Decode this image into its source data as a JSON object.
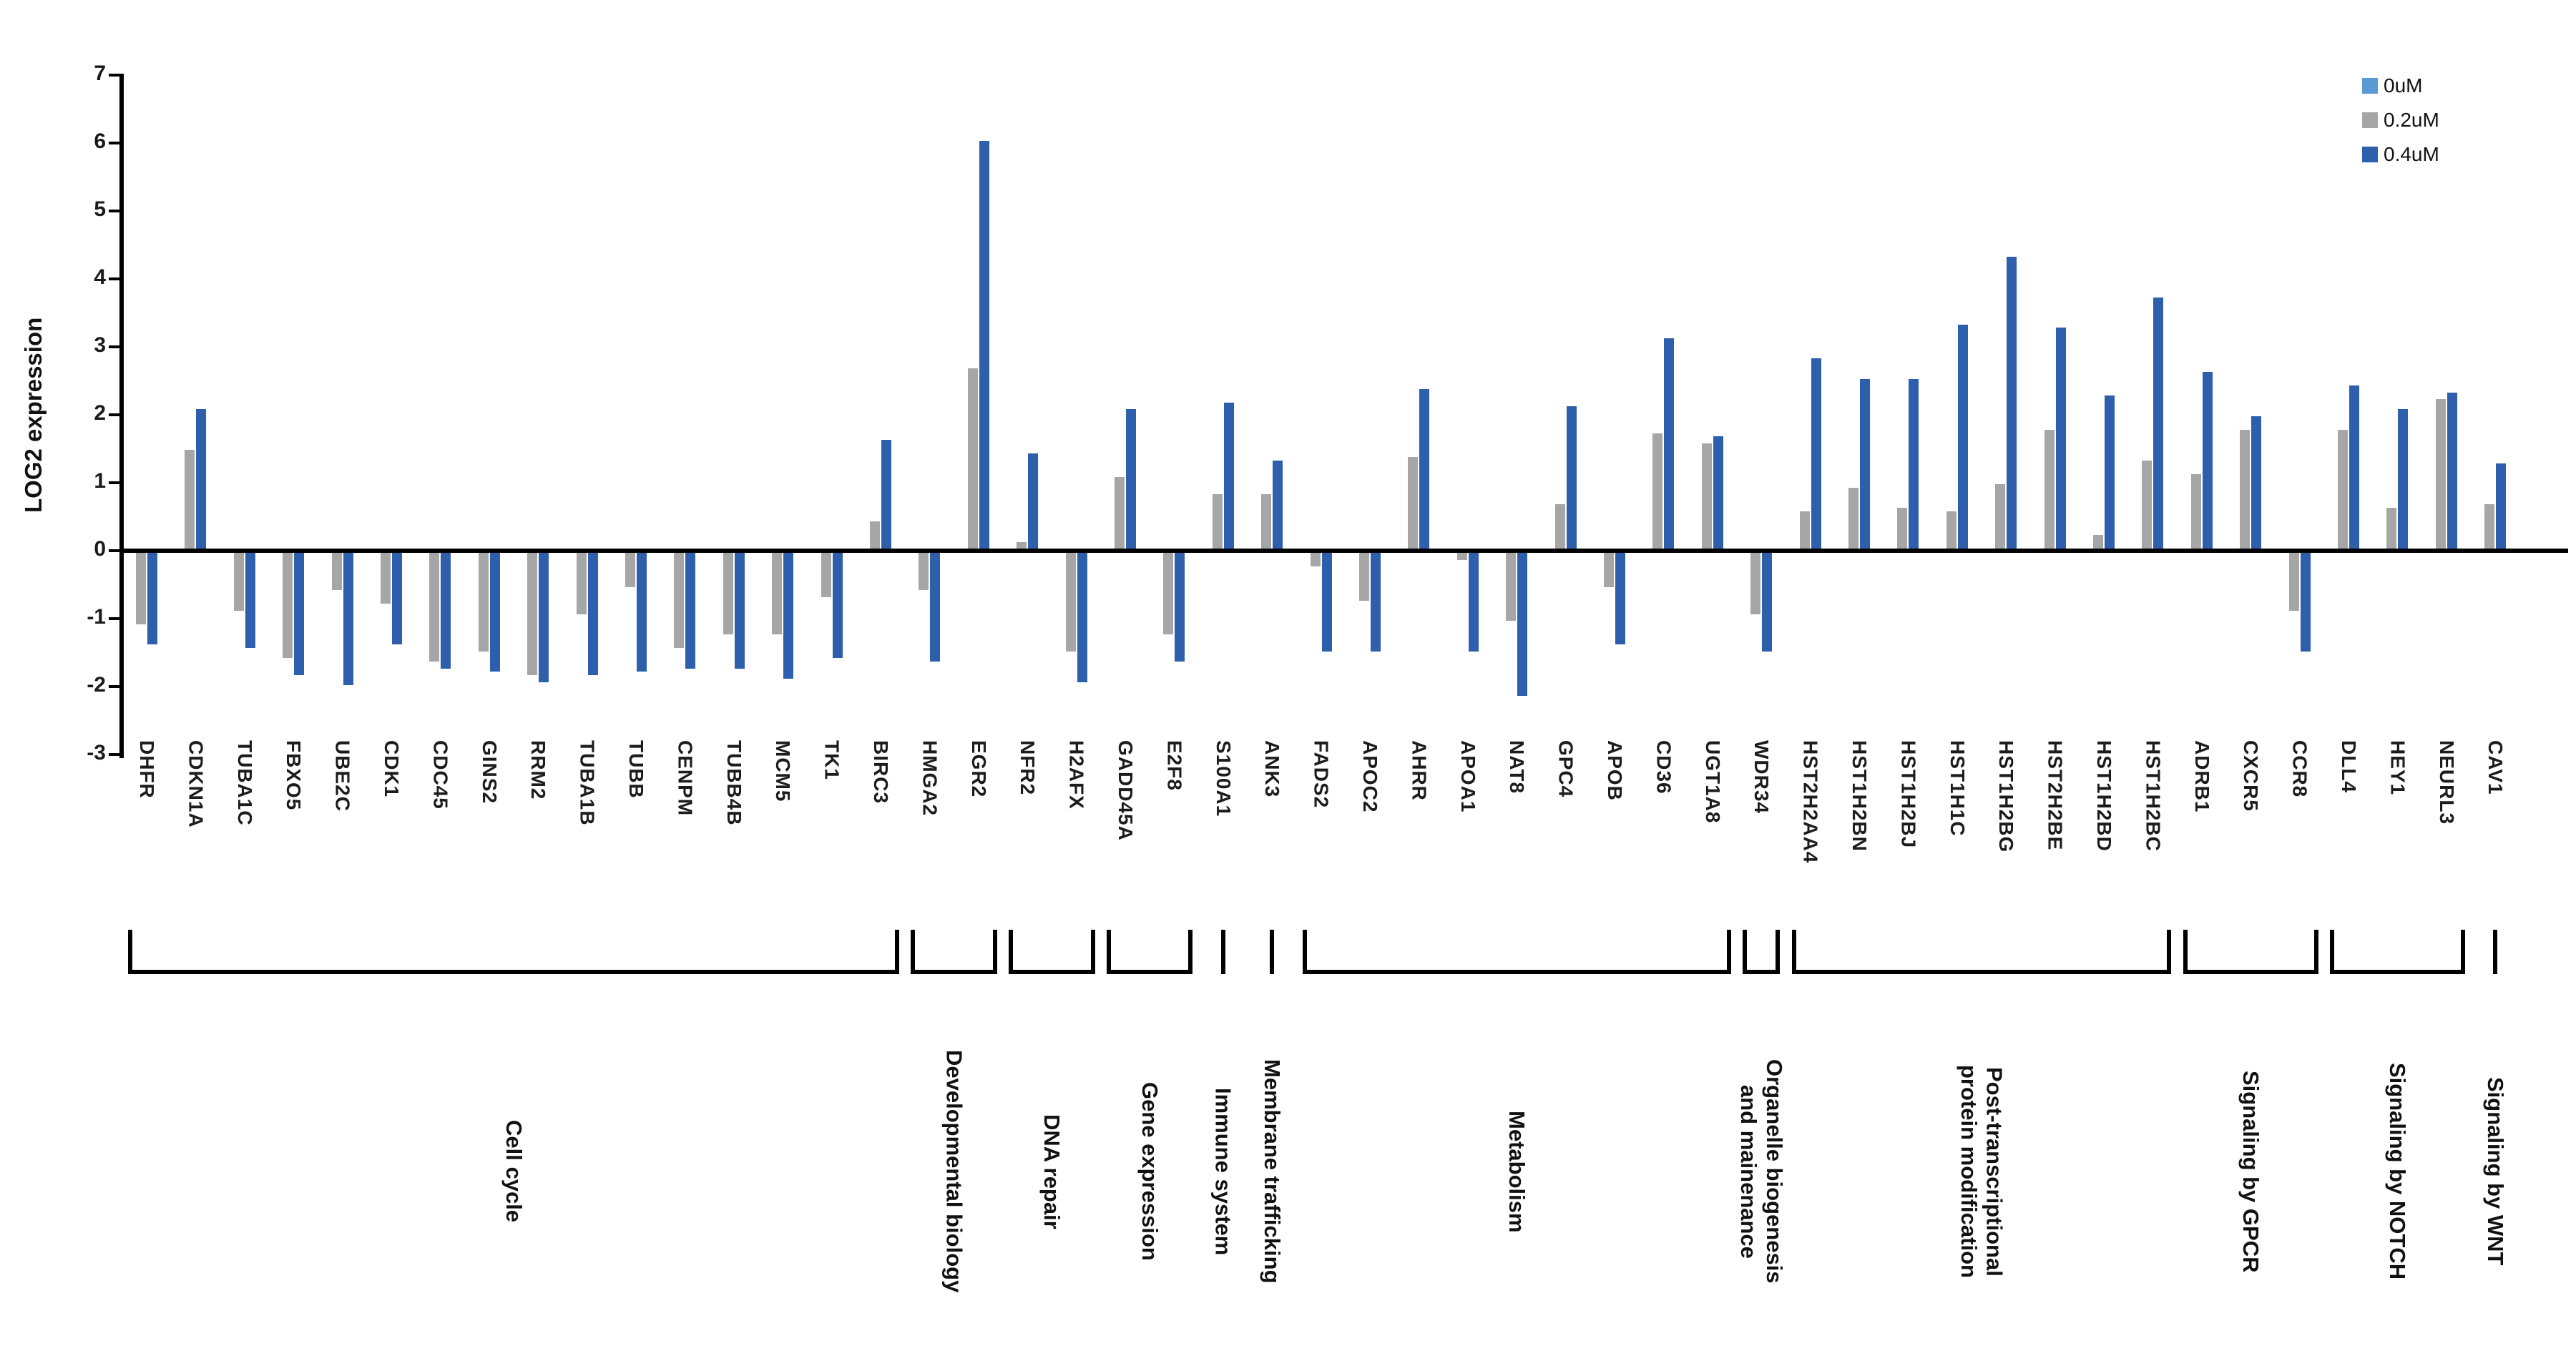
{
  "legend": [
    {
      "label": "0uM",
      "color": "#5b9bd5"
    },
    {
      "label": "0.2uM",
      "color": "#a6a6a6"
    },
    {
      "label": "0.4uM",
      "color": "#2e5fac"
    }
  ],
  "chart_data": {
    "type": "bar",
    "title": "",
    "xlabel": "",
    "ylabel": "LOG2 expression",
    "ylim": [
      -3,
      7
    ],
    "yticks": [
      7,
      6,
      5,
      4,
      3,
      2,
      1,
      0,
      -1,
      -2,
      -3
    ],
    "grid": false,
    "legend_position": "top-right",
    "series_names": [
      "0uM",
      "0.2uM",
      "0.4uM"
    ],
    "series_colors": [
      "#5b9bd5",
      "#a6a6a6",
      "#2e5fac"
    ],
    "groups": [
      {
        "category": "Cell cycle",
        "bracket": "bracket",
        "genes": [
          {
            "name": "DHFR",
            "values": [
              0,
              -1.05,
              -1.35
            ]
          },
          {
            "name": "CDKN1A",
            "values": [
              0,
              1.45,
              2.05
            ]
          },
          {
            "name": "TUBA1C",
            "values": [
              0,
              -0.85,
              -1.4
            ]
          },
          {
            "name": "FBXO5",
            "values": [
              0,
              -1.55,
              -1.8
            ]
          },
          {
            "name": "UBE2C",
            "values": [
              0,
              -0.55,
              -1.95
            ]
          },
          {
            "name": "CDK1",
            "values": [
              0,
              -0.75,
              -1.35
            ]
          },
          {
            "name": "CDC45",
            "values": [
              0,
              -1.6,
              -1.7
            ]
          },
          {
            "name": "GINS2",
            "values": [
              0,
              -1.45,
              -1.75
            ]
          },
          {
            "name": "RRM2",
            "values": [
              0,
              -1.8,
              -1.9
            ]
          },
          {
            "name": "TUBA1B",
            "values": [
              0,
              -0.9,
              -1.8
            ]
          },
          {
            "name": "TUBB",
            "values": [
              0,
              -0.5,
              -1.75
            ]
          },
          {
            "name": "CENPM",
            "values": [
              0,
              -1.4,
              -1.7
            ]
          },
          {
            "name": "TUBB4B",
            "values": [
              0,
              -1.2,
              -1.7
            ]
          },
          {
            "name": "MCM5",
            "values": [
              0,
              -1.2,
              -1.85
            ]
          },
          {
            "name": "TK1",
            "values": [
              0,
              -0.65,
              -1.55
            ]
          },
          {
            "name": "BIRC3",
            "values": [
              0,
              0.4,
              1.6
            ]
          }
        ]
      },
      {
        "category": "Developmental biology",
        "bracket": "bracket",
        "genes": [
          {
            "name": "HMGA2",
            "values": [
              0,
              -0.55,
              -1.6
            ]
          },
          {
            "name": "EGR2",
            "values": [
              0,
              2.65,
              6.0
            ]
          }
        ]
      },
      {
        "category": "DNA repair",
        "bracket": "bracket",
        "genes": [
          {
            "name": "NFR2",
            "values": [
              0,
              0.1,
              1.4
            ]
          },
          {
            "name": "H2AFX",
            "values": [
              0,
              -1.45,
              -1.9
            ]
          }
        ]
      },
      {
        "category": "Gene expression",
        "bracket": "bracket",
        "genes": [
          {
            "name": "GADD45A",
            "values": [
              0,
              1.05,
              2.05
            ]
          },
          {
            "name": "E2F8",
            "values": [
              0,
              -1.2,
              -1.6
            ]
          }
        ]
      },
      {
        "category": "Immune system",
        "bracket": "tick",
        "genes": [
          {
            "name": "S100A1",
            "values": [
              0,
              0.8,
              2.15
            ]
          }
        ]
      },
      {
        "category": "Membrane trafficking",
        "bracket": "tick",
        "genes": [
          {
            "name": "ANK3",
            "values": [
              0,
              0.8,
              1.3
            ]
          }
        ]
      },
      {
        "category": "Metabolism",
        "bracket": "bracket",
        "genes": [
          {
            "name": "FADS2",
            "values": [
              0,
              -0.2,
              -1.45
            ]
          },
          {
            "name": "APOC2",
            "values": [
              0,
              -0.7,
              -1.45
            ]
          },
          {
            "name": "AHRR",
            "values": [
              0,
              1.35,
              2.35
            ]
          },
          {
            "name": "APOA1",
            "values": [
              0,
              -0.1,
              -1.45
            ]
          },
          {
            "name": "NAT8",
            "values": [
              0,
              -1.0,
              -2.1
            ]
          },
          {
            "name": "GPC4",
            "values": [
              0,
              0.65,
              2.1
            ]
          },
          {
            "name": "APOB",
            "values": [
              0,
              -0.5,
              -1.35
            ]
          },
          {
            "name": "CD36",
            "values": [
              0,
              1.7,
              3.1
            ]
          },
          {
            "name": "UGT1A8",
            "values": [
              0,
              1.55,
              1.65
            ]
          }
        ]
      },
      {
        "category": "Organelle biogenesis\nand mainenance",
        "bracket": "bracket",
        "genes": [
          {
            "name": "WDR34",
            "values": [
              0,
              -0.9,
              -1.45
            ]
          }
        ]
      },
      {
        "category": "Post-transcriptional\nprotein modification",
        "bracket": "bracket",
        "genes": [
          {
            "name": "HST2H2AA4",
            "values": [
              0,
              0.55,
              2.8
            ]
          },
          {
            "name": "HST1H2BN",
            "values": [
              0,
              0.9,
              2.5
            ]
          },
          {
            "name": "HST1H2BJ",
            "values": [
              0,
              0.6,
              2.5
            ]
          },
          {
            "name": "HST1H1C",
            "values": [
              0,
              0.55,
              3.3
            ]
          },
          {
            "name": "HST1H2BG",
            "values": [
              0,
              0.95,
              4.3
            ]
          },
          {
            "name": "HST2H2BE",
            "values": [
              0,
              1.75,
              3.25
            ]
          },
          {
            "name": "HST1H2BD",
            "values": [
              0,
              0.2,
              2.25
            ]
          },
          {
            "name": "HST1H2BC",
            "values": [
              0,
              1.3,
              3.7
            ]
          }
        ]
      },
      {
        "category": "Signaling by GPCR",
        "bracket": "bracket",
        "genes": [
          {
            "name": "ADRB1",
            "values": [
              0,
              1.1,
              2.6
            ]
          },
          {
            "name": "CXCR5",
            "values": [
              0,
              1.75,
              1.95
            ]
          },
          {
            "name": "CCR8",
            "values": [
              0,
              -0.85,
              -1.45
            ]
          }
        ]
      },
      {
        "category": "Signaling by NOTCH",
        "bracket": "bracket",
        "genes": [
          {
            "name": "DLL4",
            "values": [
              0,
              1.75,
              2.4
            ]
          },
          {
            "name": "HEY1",
            "values": [
              0,
              0.6,
              2.05
            ]
          },
          {
            "name": "NEURL3",
            "values": [
              0,
              2.2,
              2.3
            ]
          }
        ]
      },
      {
        "category": "Signaling by WNT",
        "bracket": "tick",
        "genes": [
          {
            "name": "CAV1",
            "values": [
              0,
              0.65,
              1.25
            ]
          }
        ]
      }
    ]
  }
}
